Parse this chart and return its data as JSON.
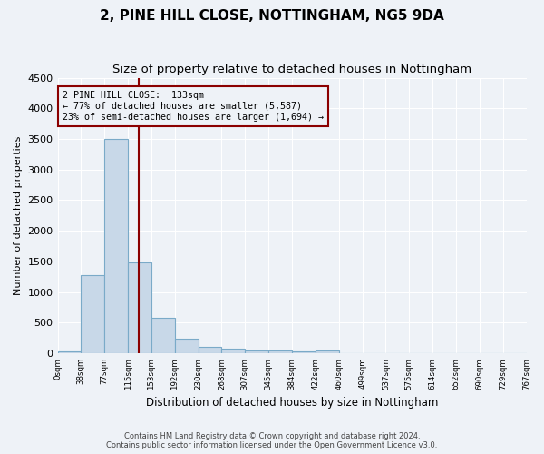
{
  "title": "2, PINE HILL CLOSE, NOTTINGHAM, NG5 9DA",
  "subtitle": "Size of property relative to detached houses in Nottingham",
  "xlabel": "Distribution of detached houses by size in Nottingham",
  "ylabel": "Number of detached properties",
  "bin_labels": [
    "0sqm",
    "38sqm",
    "77sqm",
    "115sqm",
    "153sqm",
    "192sqm",
    "230sqm",
    "268sqm",
    "307sqm",
    "345sqm",
    "384sqm",
    "422sqm",
    "460sqm",
    "499sqm",
    "537sqm",
    "575sqm",
    "614sqm",
    "652sqm",
    "690sqm",
    "729sqm",
    "767sqm"
  ],
  "bar_values": [
    30,
    1270,
    3500,
    1480,
    580,
    240,
    110,
    80,
    50,
    40,
    35,
    50,
    0,
    0,
    0,
    0,
    0,
    0,
    0,
    0
  ],
  "bar_color": "#c8d8e8",
  "bar_edgecolor": "#7aaac8",
  "vline_x": 3.45,
  "vline_color": "#8b0000",
  "annotation_text": "2 PINE HILL CLOSE:  133sqm\n← 77% of detached houses are smaller (5,587)\n23% of semi-detached houses are larger (1,694) →",
  "annotation_box_color": "#8b0000",
  "ylim": [
    0,
    4500
  ],
  "yticks": [
    0,
    500,
    1000,
    1500,
    2000,
    2500,
    3000,
    3500,
    4000,
    4500
  ],
  "footer1": "Contains HM Land Registry data © Crown copyright and database right 2024.",
  "footer2": "Contains public sector information licensed under the Open Government Licence v3.0.",
  "background_color": "#eef2f7",
  "grid_color": "#ffffff",
  "title_fontsize": 11,
  "subtitle_fontsize": 9.5
}
